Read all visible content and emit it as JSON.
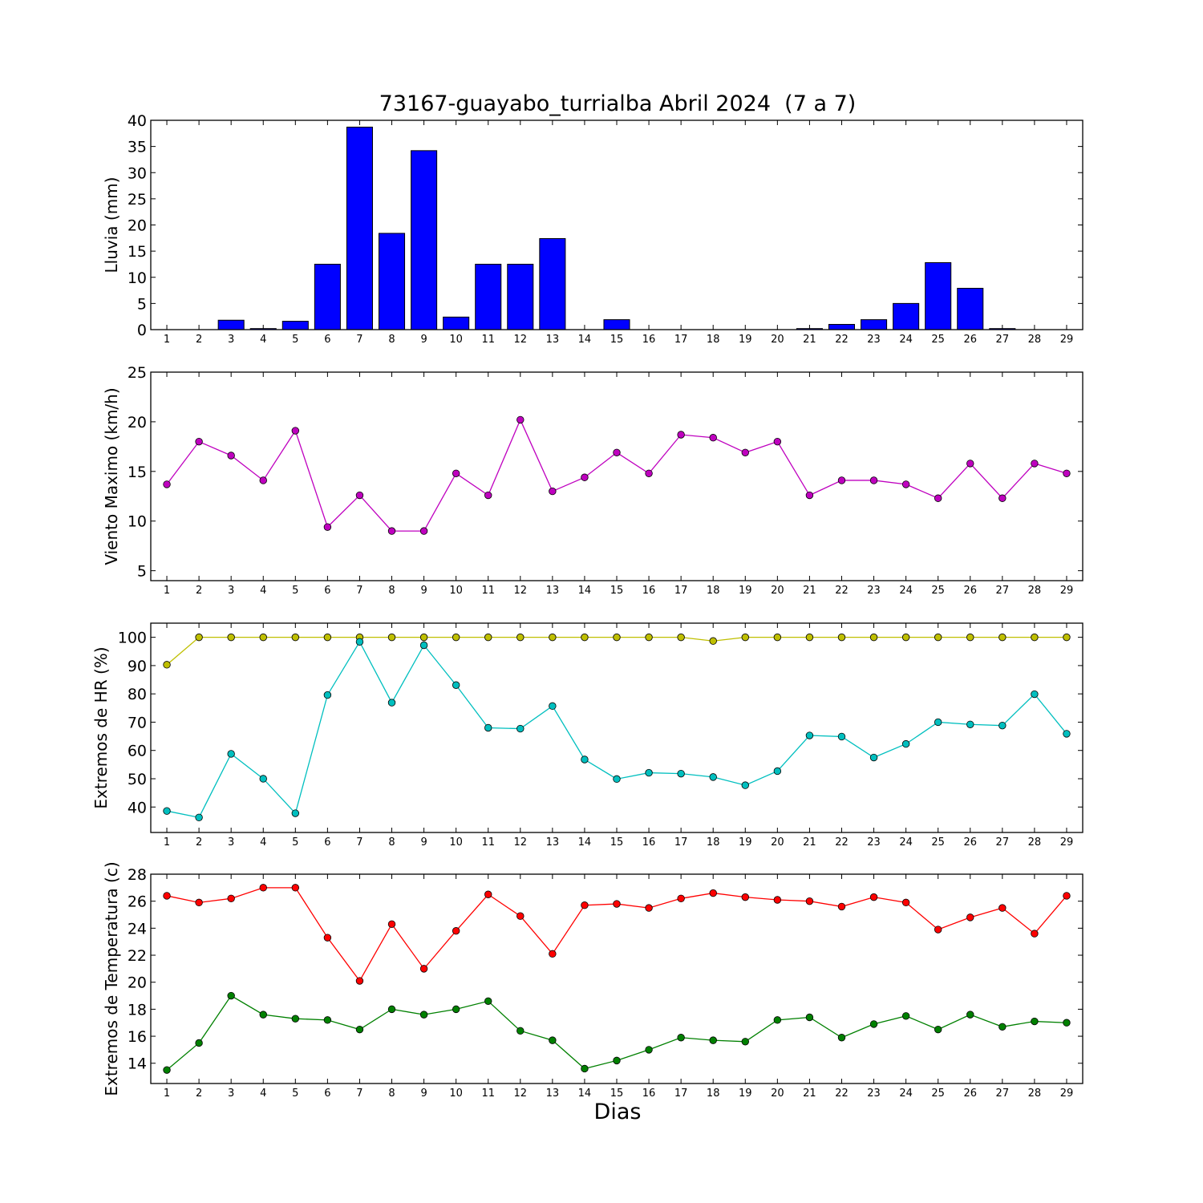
{
  "title": "73167-guayabo_turrialba Abril 2024  (7 a 7)",
  "xlabel": "Dias",
  "colors": {
    "rain_bar": "#0000ff",
    "wind": "#bf00bf",
    "hr_max": "#bfbf00",
    "hr_min": "#00bfbf",
    "temp_max": "#ff0000",
    "temp_min": "#008000"
  },
  "chart_data": [
    {
      "type": "bar",
      "ylabel": "Lluvia (mm)",
      "ylim": [
        0,
        40
      ],
      "yticks": [
        0,
        5,
        10,
        15,
        20,
        25,
        30,
        35,
        40
      ],
      "categories": [
        1,
        2,
        3,
        4,
        5,
        6,
        7,
        8,
        9,
        10,
        11,
        12,
        13,
        14,
        15,
        16,
        17,
        18,
        19,
        20,
        21,
        22,
        23,
        24,
        25,
        26,
        27,
        28,
        29
      ],
      "values": [
        0,
        0,
        1.8,
        0.2,
        1.6,
        12.5,
        38.7,
        18.4,
        34.2,
        2.4,
        12.5,
        12.5,
        17.4,
        0,
        1.9,
        0,
        0,
        0,
        0,
        0,
        0.2,
        1.0,
        1.9,
        5.0,
        12.8,
        7.9,
        0.2,
        0,
        0
      ]
    },
    {
      "type": "line",
      "ylabel": "Viento Maximo (km/h)",
      "ylim": [
        4,
        25
      ],
      "yticks": [
        5,
        10,
        15,
        20,
        25
      ],
      "x": [
        1,
        2,
        3,
        4,
        5,
        6,
        7,
        8,
        9,
        10,
        11,
        12,
        13,
        14,
        15,
        16,
        17,
        18,
        19,
        20,
        21,
        22,
        23,
        24,
        25,
        26,
        27,
        28,
        29
      ],
      "series": [
        {
          "values": [
            13.7,
            18.0,
            16.6,
            14.1,
            19.1,
            9.4,
            12.6,
            9.0,
            9.0,
            14.8,
            12.6,
            20.2,
            13.0,
            14.4,
            16.9,
            14.8,
            18.7,
            18.4,
            16.9,
            18.0,
            12.6,
            14.1,
            14.1,
            13.7,
            12.3,
            15.8,
            12.3,
            15.8,
            14.8
          ]
        }
      ]
    },
    {
      "type": "line",
      "ylabel": "Extremos de HR (%)",
      "ylim": [
        31,
        105
      ],
      "yticks": [
        40,
        50,
        60,
        70,
        80,
        90,
        100
      ],
      "x": [
        1,
        2,
        3,
        4,
        5,
        6,
        7,
        8,
        9,
        10,
        11,
        12,
        13,
        14,
        15,
        16,
        17,
        18,
        19,
        20,
        21,
        22,
        23,
        24,
        25,
        26,
        27,
        28,
        29
      ],
      "series": [
        {
          "values": [
            90.3,
            100,
            100,
            100,
            100,
            100,
            100,
            100,
            100,
            100,
            100,
            100,
            100,
            100,
            100,
            100,
            100,
            98.7,
            100,
            100,
            100,
            100,
            100,
            100,
            100,
            100,
            100,
            100,
            100
          ]
        },
        {
          "values": [
            38.6,
            36.3,
            58.8,
            50.0,
            37.8,
            79.6,
            98.4,
            76.9,
            97.2,
            83.1,
            68.0,
            67.7,
            75.7,
            56.8,
            49.9,
            52.1,
            51.8,
            50.6,
            47.7,
            52.7,
            65.3,
            64.9,
            57.5,
            62.3,
            70.0,
            69.2,
            68.8,
            79.9,
            65.9
          ]
        }
      ]
    },
    {
      "type": "line",
      "ylabel": "Extremos de Temperatura (c)",
      "ylim": [
        12.5,
        28
      ],
      "yticks": [
        14,
        16,
        18,
        20,
        22,
        24,
        26,
        28
      ],
      "x": [
        1,
        2,
        3,
        4,
        5,
        6,
        7,
        8,
        9,
        10,
        11,
        12,
        13,
        14,
        15,
        16,
        17,
        18,
        19,
        20,
        21,
        22,
        23,
        24,
        25,
        26,
        27,
        28,
        29
      ],
      "series": [
        {
          "values": [
            26.4,
            25.9,
            26.2,
            27.0,
            27.0,
            23.3,
            20.1,
            24.3,
            21.0,
            23.8,
            26.5,
            24.9,
            22.1,
            25.7,
            25.8,
            25.5,
            26.2,
            26.6,
            26.3,
            26.1,
            26.0,
            25.6,
            26.3,
            25.9,
            23.9,
            24.8,
            25.5,
            23.6,
            26.4
          ]
        },
        {
          "values": [
            13.5,
            15.5,
            19.0,
            17.6,
            17.3,
            17.2,
            16.5,
            18.0,
            17.6,
            18.0,
            18.6,
            16.4,
            15.7,
            13.6,
            14.2,
            15.0,
            15.9,
            15.7,
            15.6,
            17.2,
            17.4,
            15.9,
            16.9,
            17.5,
            16.5,
            17.6,
            16.7,
            17.1,
            17.0
          ]
        }
      ]
    }
  ]
}
